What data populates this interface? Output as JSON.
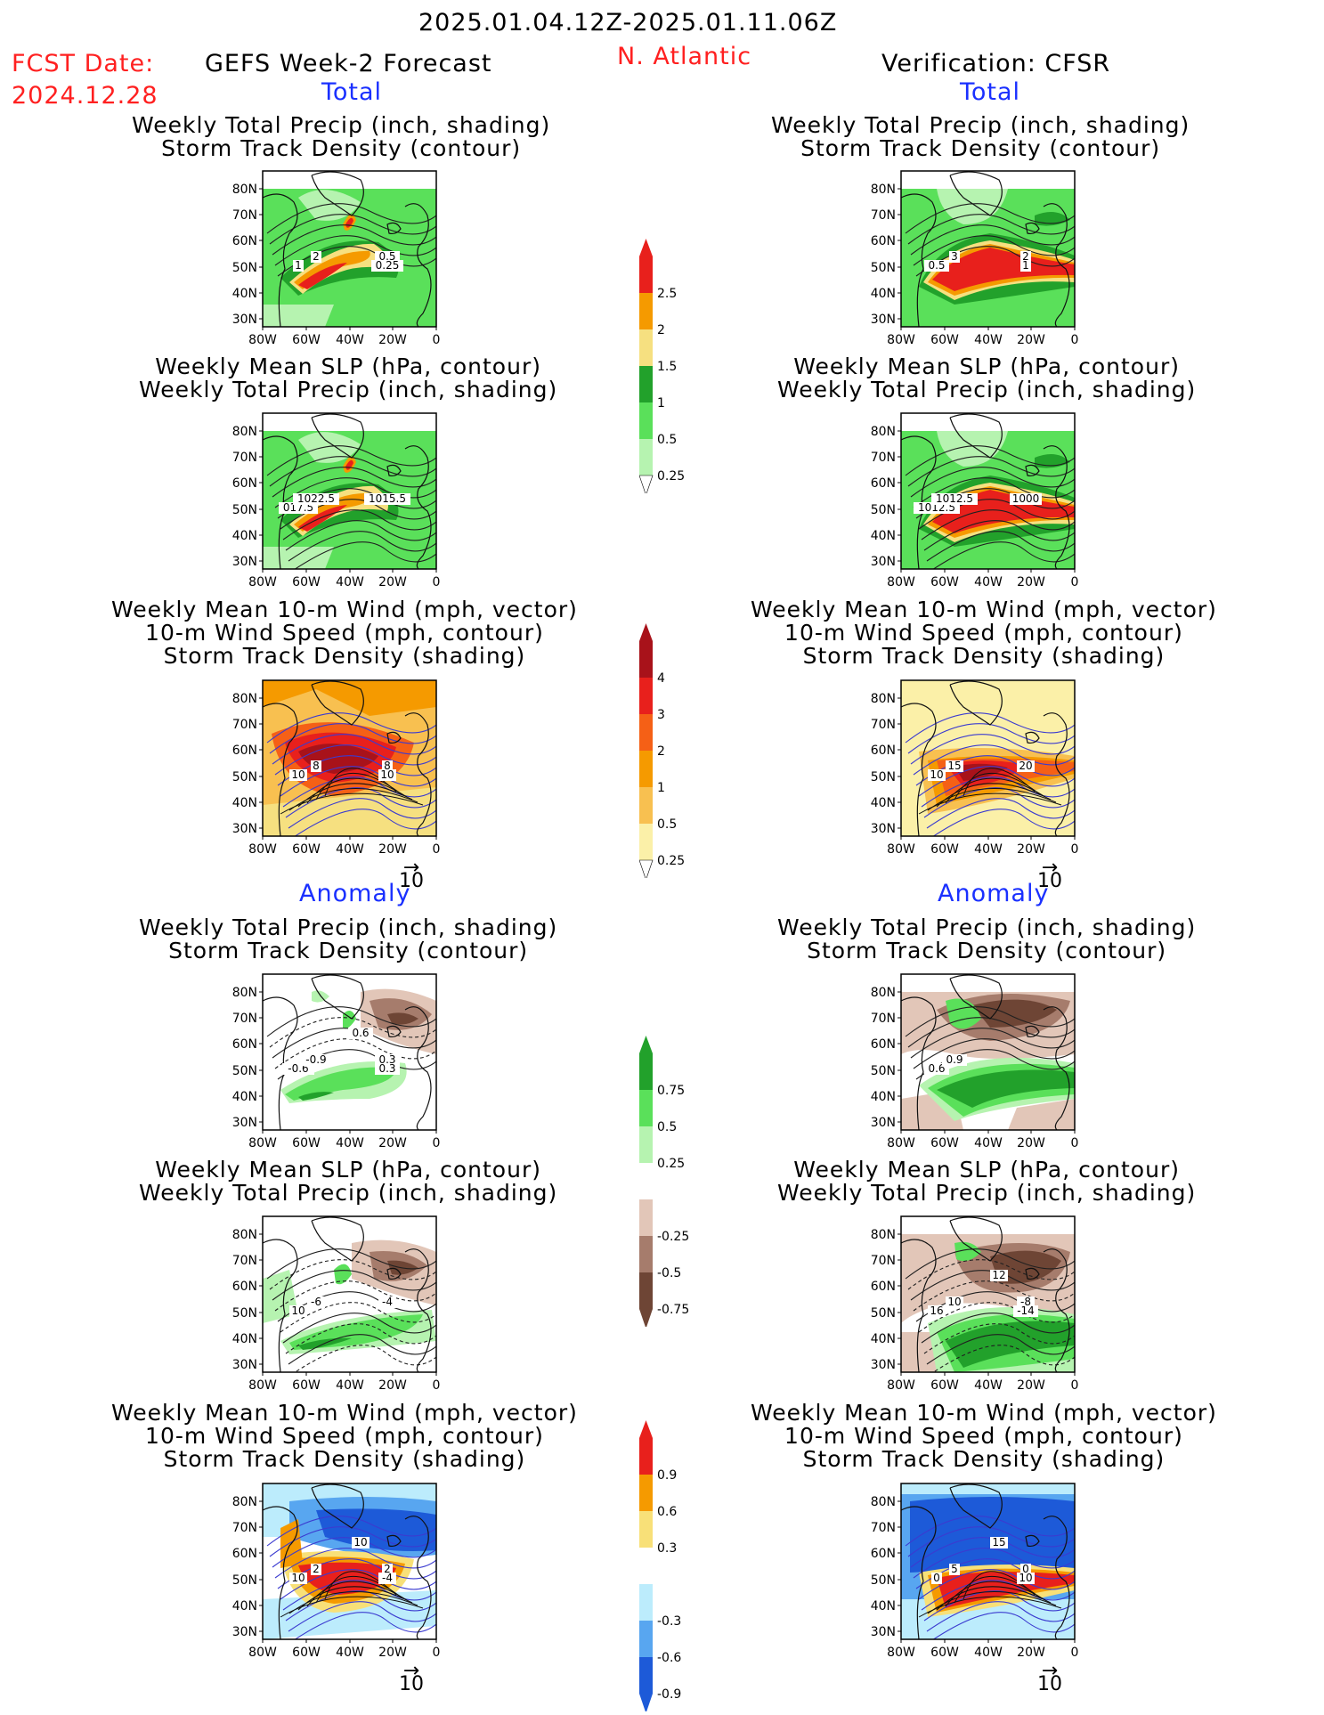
{
  "header": {
    "date_range": "2025.01.04.12Z-2025.01.11.06Z",
    "fcst_label": "FCST Date:",
    "fcst_date": "2024.12.28",
    "left_title": "GEFS Week-2 Forecast",
    "region": "N. Atlantic",
    "right_title": "Verification: CFSR",
    "total_label": "Total",
    "anomaly_label": "Anomaly"
  },
  "axes": {
    "lat_ticks": [
      "80N",
      "70N",
      "60N",
      "50N",
      "40N",
      "30N"
    ],
    "lon_ticks": [
      "80W",
      "60W",
      "40W",
      "20W",
      "0"
    ]
  },
  "panel_titles": {
    "precip_track": [
      "Weekly Total Precip (inch, shading)",
      "Storm Track Density (contour)"
    ],
    "slp_precip": [
      "Weekly Mean SLP (hPa, contour)",
      "Weekly Total Precip (inch, shading)"
    ],
    "wind_track": [
      "Weekly Mean 10-m Wind (mph, vector)",
      "10-m Wind Speed (mph, contour)",
      "Storm Track Density (shading)"
    ]
  },
  "vector_ref": "10",
  "colorbars": {
    "total_precip": {
      "labels": [
        "2.5",
        "2",
        "1.5",
        "1",
        "0.5",
        "0.25"
      ],
      "colors": [
        "#e8201c",
        "#f59a00",
        "#f6e080",
        "#22a12b",
        "#5ae05a",
        "#b6f3b0"
      ]
    },
    "total_track": {
      "labels": [
        "4",
        "3",
        "2",
        "1",
        "0.5",
        "0.25"
      ],
      "colors": [
        "#a8121a",
        "#e8201c",
        "#f56016",
        "#f59a00",
        "#f8c050",
        "#fbf0a8"
      ]
    },
    "anom_precip": {
      "labels": [
        "0.75",
        "0.5",
        "0.25",
        "-0.25",
        "-0.5",
        "-0.75"
      ],
      "colors": [
        "#22a12b",
        "#5ae05a",
        "#b6f3b0",
        "#ffffff",
        "#e2c6b8",
        "#a67c6c",
        "#6e4535"
      ]
    },
    "anom_track": {
      "labels": [
        "0.9",
        "0.6",
        "0.3",
        "-0.3",
        "-0.6",
        "-0.9"
      ],
      "colors": [
        "#e8201c",
        "#f59a00",
        "#f8e078",
        "#ffffff",
        "#bcecfc",
        "#58a6f0",
        "#1d5ad8"
      ]
    }
  },
  "contour_labels": {
    "p1": [
      "1",
      "2",
      "0.5",
      "0.25"
    ],
    "p2": [
      "0.5",
      "3",
      "2",
      "1"
    ],
    "p3": [
      "017.5",
      "1022.5",
      "1015.5"
    ],
    "p4": [
      "1012.5",
      "1012.5",
      "1000"
    ],
    "p5": [
      "10",
      "8",
      "8",
      "10"
    ],
    "p6": [
      "10",
      "15",
      "20"
    ],
    "p7": [
      "-0.6",
      "-0.9",
      "0.3",
      "0.3",
      "0.6"
    ],
    "p8": [
      "0.6",
      "0.9"
    ],
    "p9": [
      "10",
      "-6",
      "-4"
    ],
    "p10": [
      "16",
      "10",
      "-8",
      "-14",
      "12"
    ],
    "p11": [
      "10",
      "2",
      "2",
      "-4",
      "10"
    ],
    "p12": [
      "0",
      "5",
      "0",
      "10",
      "15"
    ]
  },
  "colors": {
    "title_red": "#ff2020",
    "label_blue": "#1a30ff"
  }
}
